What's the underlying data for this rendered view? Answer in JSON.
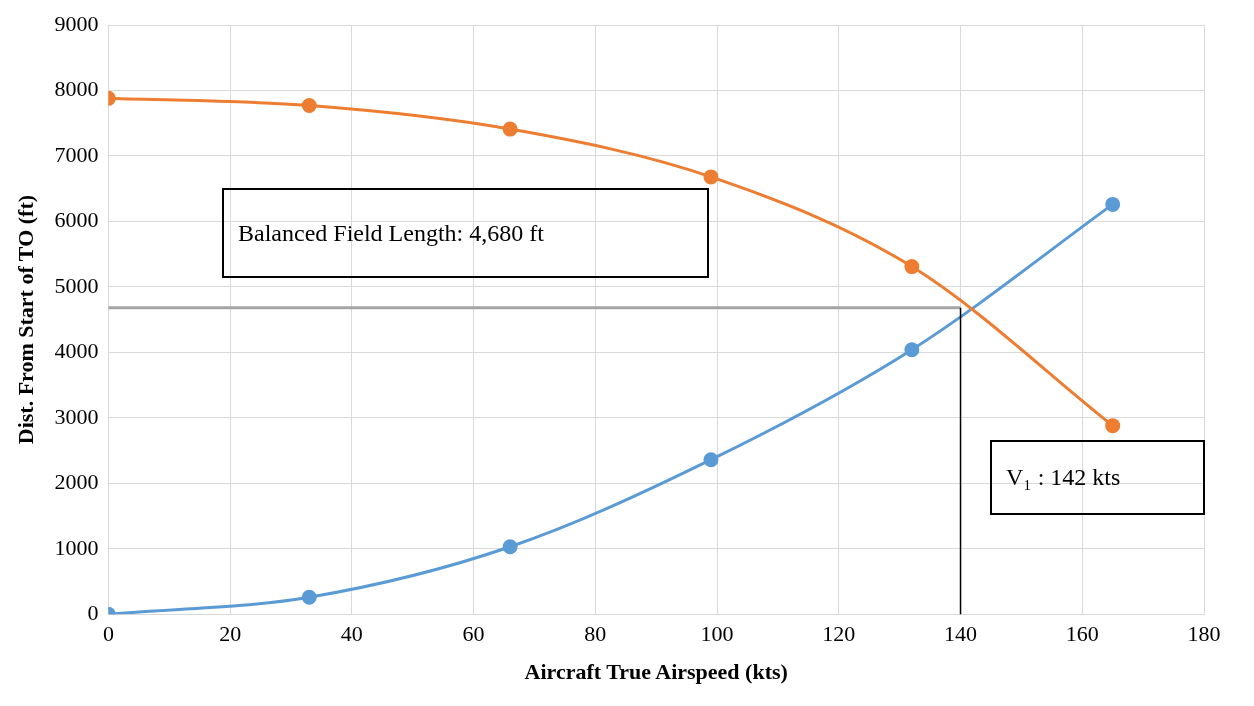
{
  "chart_data": {
    "type": "line",
    "xlabel": "Aircraft True Airspeed (kts)",
    "ylabel": "Dist. From Start of TO (ft)",
    "x": [
      0,
      33,
      66,
      99,
      132,
      165
    ],
    "series": [
      {
        "color": "#ed7d31",
        "values": [
          7880,
          7770,
          7410,
          6680,
          5310,
          2880
        ]
      },
      {
        "color": "#5b9bd5",
        "values": [
          0,
          260,
          1030,
          2360,
          4040,
          6260
        ]
      }
    ],
    "xlim": [
      0,
      180
    ],
    "xticks": [
      0,
      20,
      40,
      60,
      80,
      100,
      120,
      140,
      160,
      180
    ],
    "ylim": [
      0,
      9000
    ],
    "yticks": [
      0,
      1000,
      2000,
      3000,
      4000,
      5000,
      6000,
      7000,
      8000,
      9000
    ],
    "ref_lines": [
      {
        "axis": "y",
        "value": 4680,
        "color": "#a5a5a5"
      },
      {
        "axis": "x",
        "value": 140,
        "color": "#000000"
      }
    ],
    "annotations": [
      "Balanced Field Length: 4,680 ft",
      "V₁ : 142 kts"
    ],
    "grid": true,
    "legend": false,
    "marker": "circle",
    "line_style": "solid"
  }
}
